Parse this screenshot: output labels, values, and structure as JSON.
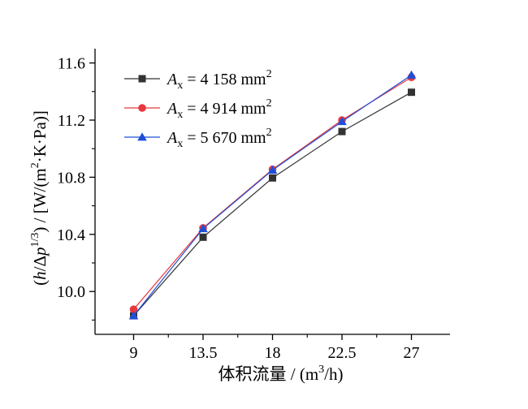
{
  "chart_data": {
    "type": "line",
    "title": "",
    "xlabel": "体积流量 / (m3/h)",
    "xlabel_parts": {
      "main": "体积流量 / (m",
      "sup": "3",
      "end": "/h)"
    },
    "ylabel": "(h/Δp1/3) / [W/(m2·K·Pa)]",
    "ylabel_parts": {
      "open": "(",
      "h": "h",
      "slash": "/Δ",
      "p": "p",
      "sup": "1/3",
      "close": ") / [W/(m",
      "sup2": "2",
      "tail": "·K·Pa)]"
    },
    "x": [
      9,
      13.5,
      18,
      22.5,
      27
    ],
    "x_tick_labels": [
      "9",
      "13.5",
      "18",
      "22.5",
      "27"
    ],
    "y_ticks": [
      10.0,
      10.4,
      10.8,
      11.2,
      11.6
    ],
    "y_tick_labels": [
      "10.0",
      "10.4",
      "10.8",
      "11.2",
      "11.6"
    ],
    "xlim": [
      6.5,
      29.5
    ],
    "ylim": [
      9.7,
      11.7
    ],
    "grid": false,
    "legend_position": "top-left",
    "series": [
      {
        "name": "Ax = 4 158 mm2",
        "label_var": "A",
        "label_sub": "x",
        "label_value": " = 4 158 mm",
        "label_sup": "2",
        "color": "#333333",
        "marker": "square",
        "values": [
          9.83,
          10.38,
          10.795,
          11.12,
          11.395
        ]
      },
      {
        "name": "Ax = 4 914 mm2",
        "label_var": "A",
        "label_sub": "x",
        "label_value": " = 4 914 mm",
        "label_sup": "2",
        "color": "#e8383d",
        "marker": "circle",
        "values": [
          9.875,
          10.445,
          10.855,
          11.2,
          11.5
        ]
      },
      {
        "name": "Ax = 5 670 mm2",
        "label_var": "A",
        "label_sub": "x",
        "label_value": " = 5 670 mm",
        "label_sup": "2",
        "color": "#1f4fd8",
        "marker": "triangle",
        "values": [
          9.83,
          10.44,
          10.85,
          11.19,
          11.515
        ]
      }
    ]
  }
}
